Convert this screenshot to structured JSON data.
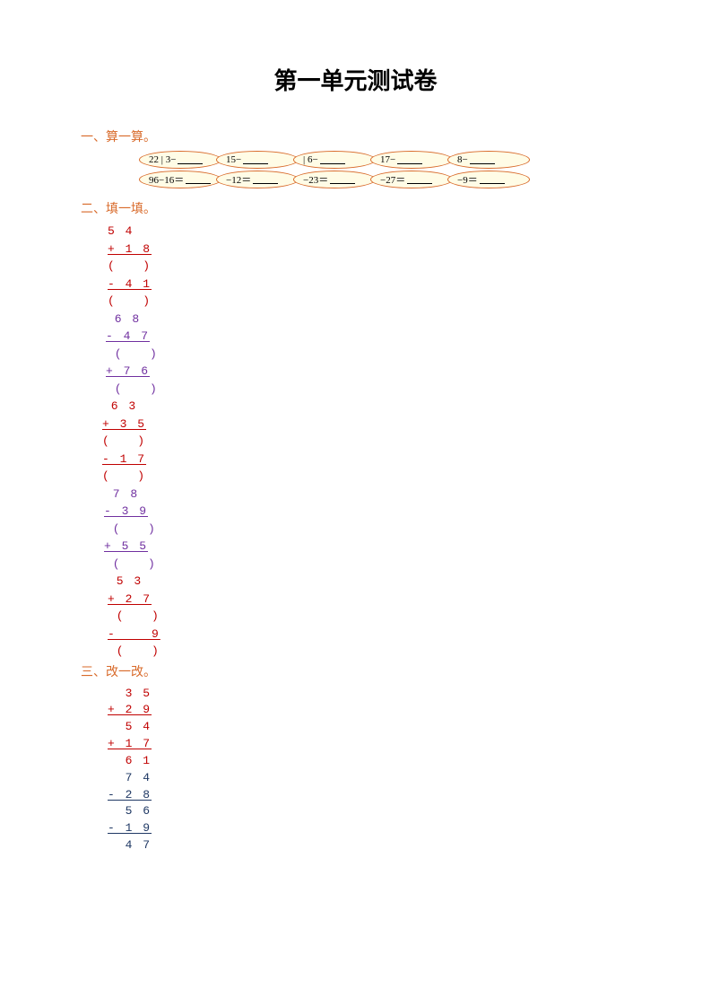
{
  "title": "第一单元测试卷",
  "section1": {
    "header": "一、算一算。",
    "header_color": "#d86a2a",
    "row1": [
      {
        "prefix": "22 | 3−"
      },
      {
        "prefix": "15−"
      },
      {
        "prefix": "| 6−"
      },
      {
        "prefix": "17−"
      },
      {
        "prefix": "8−"
      }
    ],
    "row2": [
      {
        "prefix": "96−16＝"
      },
      {
        "prefix": "−12＝"
      },
      {
        "prefix": "−23＝"
      },
      {
        "prefix": "−27＝"
      },
      {
        "prefix": "−9＝"
      }
    ]
  },
  "section2": {
    "header": "二、填一填。",
    "header_color": "#d86a2a",
    "groups": [
      {
        "color": "#c00000",
        "lines": [
          "5 4",
          "+ 1 8",
          "(   )",
          "- 4 1",
          "(   )"
        ],
        "underline_idx": [
          1,
          3
        ],
        "indent": 30
      },
      {
        "color": "#7030a0",
        "lines": [
          " 6 8",
          "- 4 7",
          " (   )",
          "+ 7 6",
          " (   )"
        ],
        "underline_idx": [
          1,
          3
        ],
        "indent": 28
      },
      {
        "color": "#c00000",
        "lines": [
          " 6 3",
          "+ 3 5",
          "(   )",
          "- 1 7",
          "(   )"
        ],
        "underline_idx": [
          1,
          3
        ],
        "indent": 24
      },
      {
        "color": "#7030a0",
        "lines": [
          " 7 8",
          "- 3 9",
          " (   )",
          "+ 5 5",
          " (   )"
        ],
        "underline_idx": [
          1,
          3
        ],
        "indent": 26
      },
      {
        "color": "#c00000",
        "lines": [
          " 5 3",
          "+ 2 7",
          " (   )",
          "-    9",
          " (   )"
        ],
        "underline_idx": [
          1,
          3
        ],
        "indent": 30
      }
    ]
  },
  "section3": {
    "header": "三、改一改。",
    "header_color": "#d86a2a",
    "groups": [
      {
        "color": "#c00000",
        "lines": [
          "  3 5",
          "+ 2 9",
          "  5 4",
          "+ 1 7",
          "  6 1"
        ],
        "underline_idx": [
          1,
          3
        ],
        "indent": 30
      },
      {
        "color": "#1f3864",
        "lines": [
          "  7 4",
          "- 2 8",
          "  5 6",
          "- 1 9",
          "  4 7"
        ],
        "underline_idx": [
          1,
          3
        ],
        "indent": 30
      }
    ]
  }
}
